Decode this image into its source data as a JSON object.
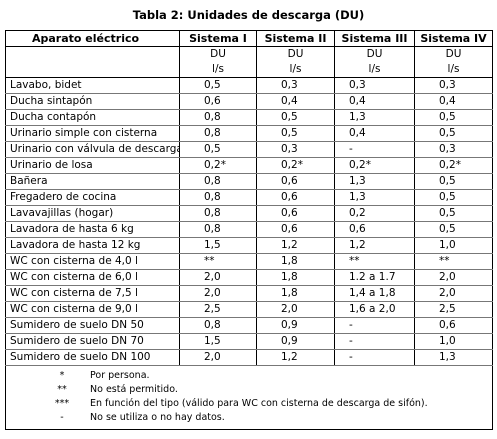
{
  "title": "Tabla 2: Unidades de descarga (DU)",
  "table": {
    "columns": [
      "Aparato eléctrico",
      "Sistema I",
      "Sistema II",
      "Sistema III",
      "Sistema IV"
    ],
    "units": [
      "DU",
      "l/s"
    ],
    "rows": [
      {
        "label": "Lavabo, bidet",
        "values": [
          "0,5",
          "0,3",
          "0,3",
          "0,3"
        ]
      },
      {
        "label": "Ducha sintapón",
        "values": [
          "0,6",
          "0,4",
          "0,4",
          "0,4"
        ]
      },
      {
        "label": "Ducha contapón",
        "values": [
          "0,8",
          "0,5",
          "1,3",
          "0,5"
        ]
      },
      {
        "label": "Urinario simple con cisterna",
        "values": [
          "0,8",
          "0,5",
          "0,4",
          "0,5"
        ]
      },
      {
        "label": "Urinario con válvula de descarga",
        "values": [
          "0,5",
          "0,3",
          "-",
          "0,3"
        ]
      },
      {
        "label": "Urinario de losa",
        "values": [
          "0,2*",
          "0,2*",
          "0,2*",
          "0,2*"
        ]
      },
      {
        "label": "Bañera",
        "values": [
          "0,8",
          "0,6",
          "1,3",
          "0,5"
        ]
      },
      {
        "label": "Fregadero de cocina",
        "values": [
          "0,8",
          "0,6",
          "1,3",
          "0,5"
        ]
      },
      {
        "label": "Lavavajillas (hogar)",
        "values": [
          "0,8",
          "0,6",
          "0,2",
          "0,5"
        ]
      },
      {
        "label": "Lavadora de hasta 6 kg",
        "values": [
          "0,8",
          "0,6",
          "0,6",
          "0,5"
        ]
      },
      {
        "label": "Lavadora de hasta 12 kg",
        "values": [
          "1,5",
          "1,2",
          "1,2",
          "1,0"
        ]
      },
      {
        "label": "WC con cisterna de 4,0 l",
        "values": [
          "**",
          "1,8",
          "**",
          "**"
        ]
      },
      {
        "label": "WC con cisterna de 6,0 l",
        "values": [
          "2,0",
          "1,8",
          "1.2 a 1.7",
          "2,0"
        ]
      },
      {
        "label": "WC con cisterna de 7,5 l",
        "values": [
          "2,0",
          "1,8",
          "1,4 a 1,8",
          "2,0"
        ]
      },
      {
        "label": "WC con cisterna de 9,0 l",
        "values": [
          "2,5",
          "2,0",
          "1,6 a 2,0",
          "2,5"
        ]
      },
      {
        "label": "Sumidero de suelo DN 50",
        "values": [
          "0,8",
          "0,9",
          "-",
          "0,6"
        ]
      },
      {
        "label": "Sumidero de suelo DN 70",
        "values": [
          "1,5",
          "0,9",
          "-",
          "1,0"
        ]
      },
      {
        "label": "Sumidero de suelo DN 100",
        "values": [
          "2,0",
          "1,2",
          "-",
          "1,3"
        ]
      }
    ],
    "footnotes": [
      {
        "symbol": "*",
        "text": "Por persona."
      },
      {
        "symbol": "**",
        "text": "No está permitido."
      },
      {
        "symbol": "***",
        "text": "En función del tipo (válido para WC con cisterna de descarga de sifón)."
      },
      {
        "symbol": "-",
        "text": "No se utiliza o no hay datos."
      }
    ]
  }
}
